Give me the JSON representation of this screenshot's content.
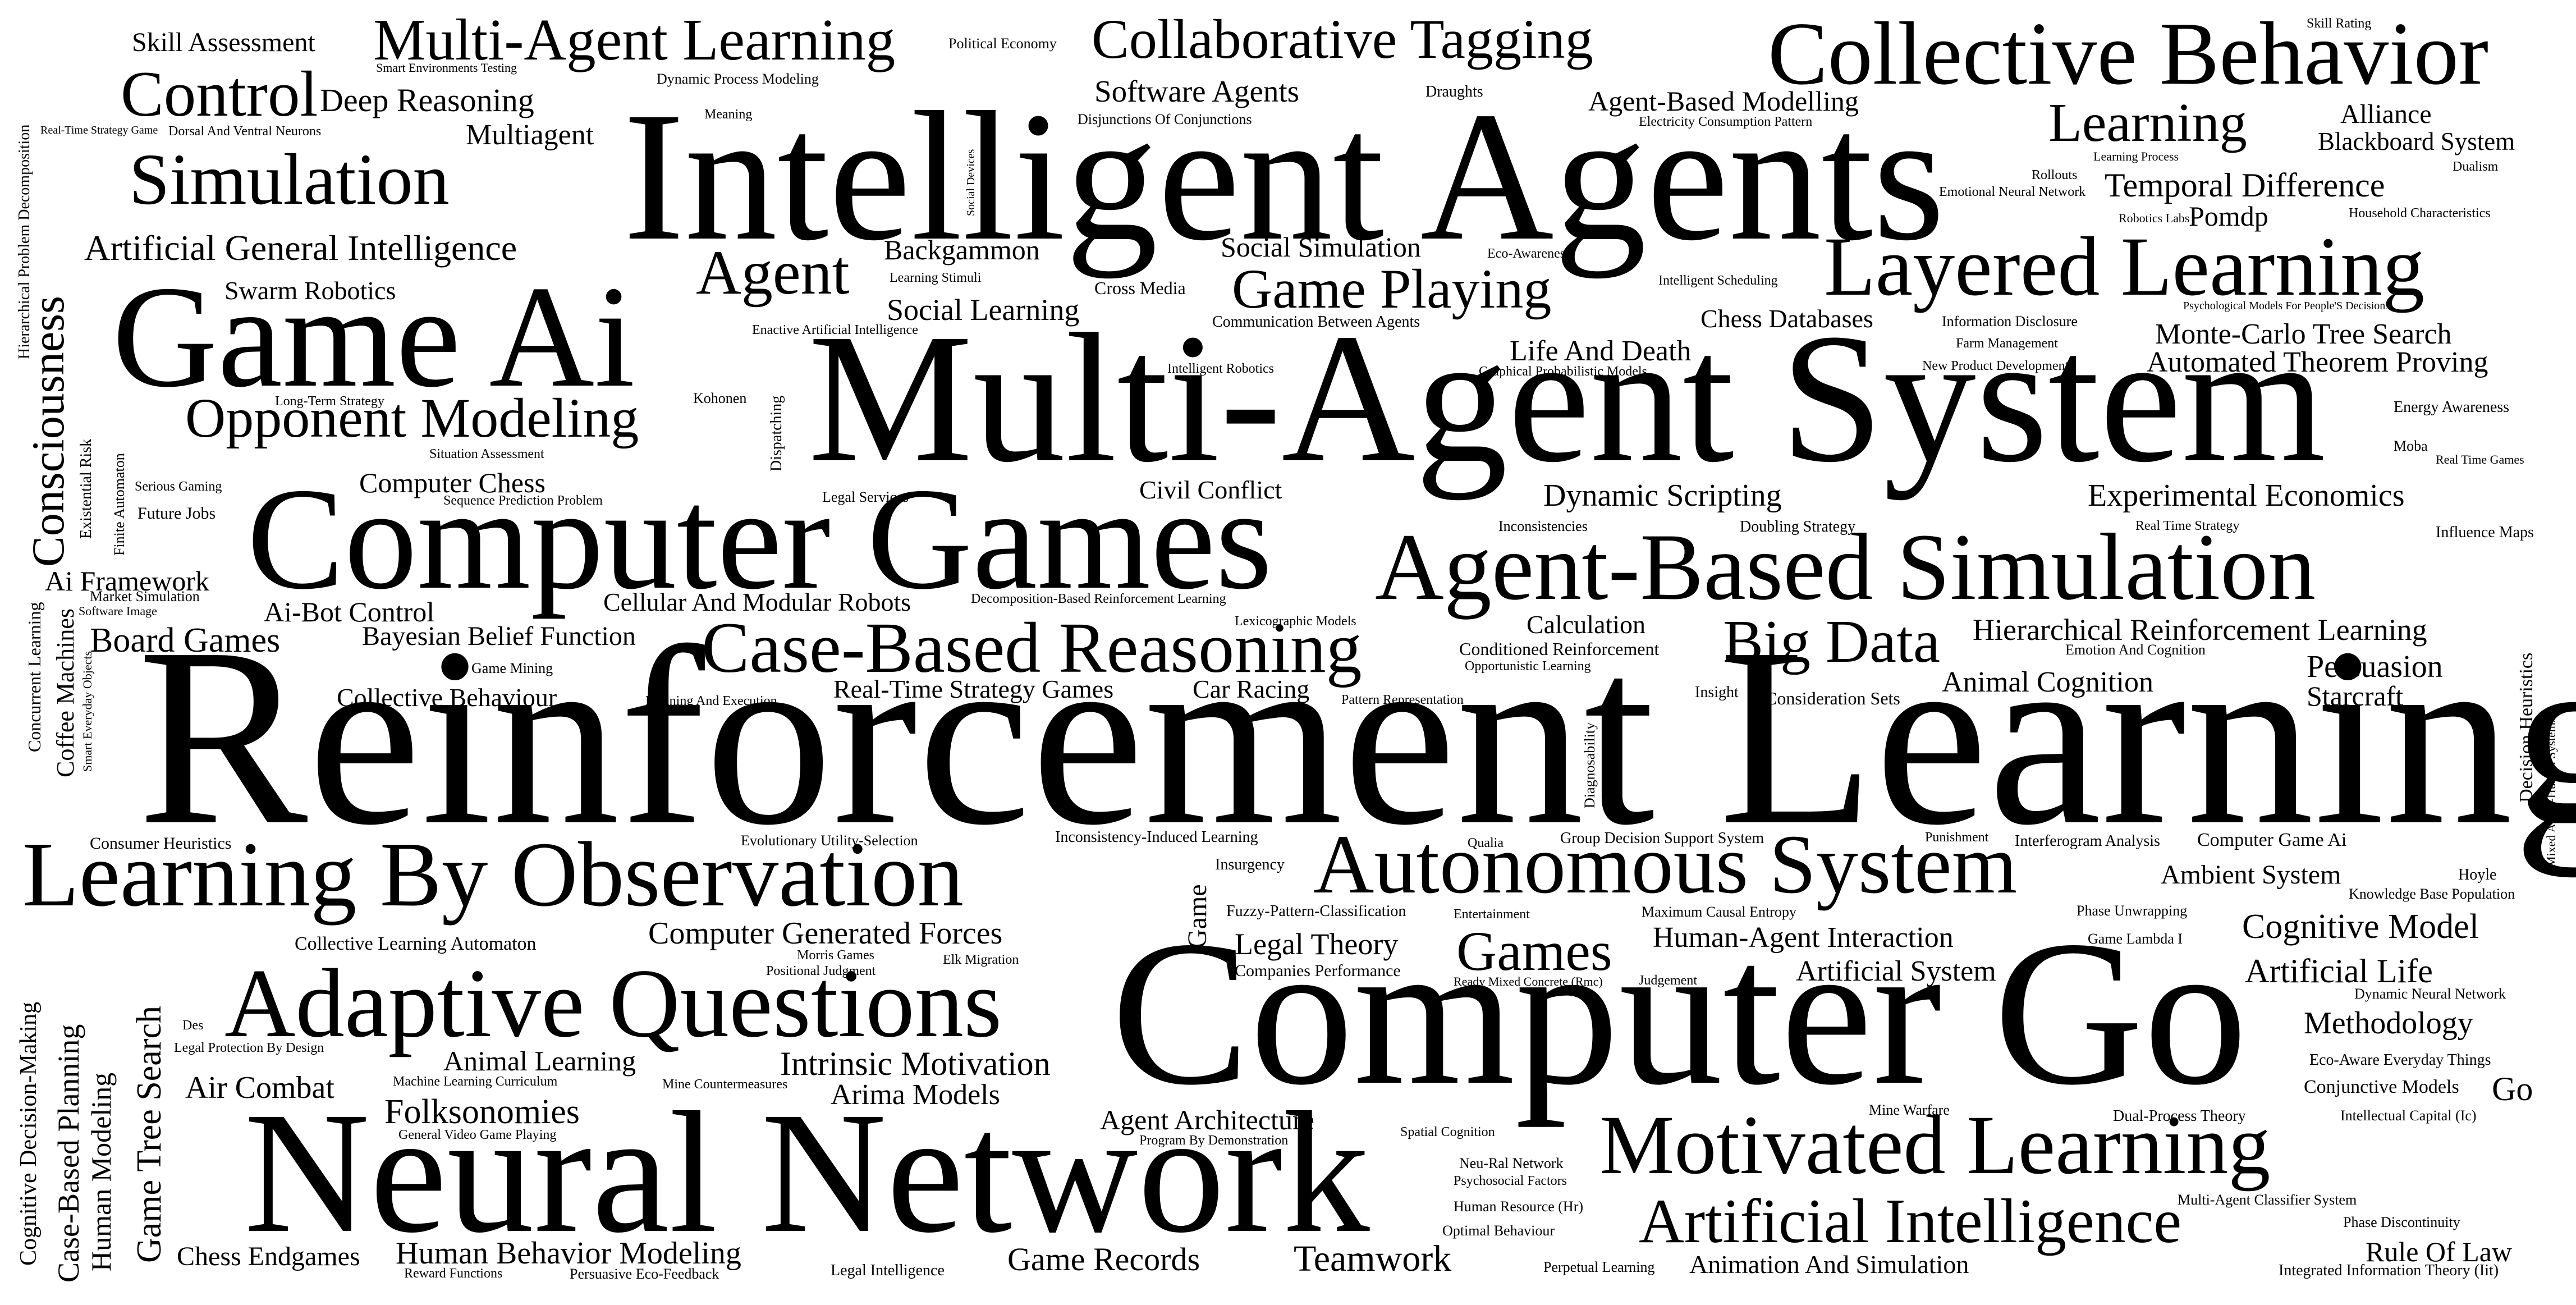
{
  "words": {
    "skill_assessment": "Skill Assessment",
    "multi_agent_learning": "Multi-Agent Learning",
    "political_economy": "Political Economy",
    "collaborative_tagging": "Collaborative Tagging",
    "collective_behavior": "Collective Behavior",
    "skill_rating": "Skill Rating",
    "smart_environments_testing": "Smart Environments Testing",
    "dynamic_process_modeling": "Dynamic Process Modeling",
    "control": "Control",
    "deep_reasoning": "Deep Reasoning",
    "software_agents": "Software Agents",
    "draughts": "Draughts",
    "agent_based_modelling": "Agent-Based Modelling",
    "meaning": "Meaning",
    "disjunctions_of_conjunctions": "Disjunctions Of Conjunctions",
    "electricity_consumption_pattern": "Electricity Consumption Pattern",
    "alliance": "Alliance",
    "learning": "Learning",
    "blackboard_system": "Blackboard System",
    "multiagent": "Multiagent",
    "real_time_strategy_game": "Real-Time Strategy Game",
    "dorsal_ventral_neurons": "Dorsal And Ventral Neurons",
    "intelligent_agents": "Intelligent Agents",
    "learning_process": "Learning Process",
    "dualism": "Dualism",
    "simulation": "Simulation",
    "rollouts": "Rollouts",
    "temporal_difference": "Temporal Difference",
    "social_devices": "Social Devices",
    "emotional_neural_network": "Emotional Neural Network",
    "robotics_labs": "Robotics Labs",
    "household_characteristics": "Household Characteristics",
    "pomdp": "Pomdp",
    "artificial_general_intelligence": "Artificial General Intelligence",
    "backgammon": "Backgammon",
    "social_simulation": "Social Simulation",
    "eco_awareness": "Eco-Awareness",
    "agent": "Agent",
    "layered_learning": "Layered Learning",
    "learning_stimuli": "Learning Stimuli",
    "intelligent_scheduling": "Intelligent Scheduling",
    "cross_media": "Cross Media",
    "game_playing": "Game Playing",
    "swarm_robotics": "Swarm Robotics",
    "psychological_models": "Psychological Models For People'S Decisions",
    "social_learning": "Social Learning",
    "chess_databases": "Chess Databases",
    "information_disclosure": "Information Disclosure",
    "communication_between_agents": "Communication Between Agents",
    "enactive_ai": "Enactive Artificial Intelligence",
    "monte_carlo_tree_search": "Monte-Carlo Tree Search",
    "game_ai": "Game Ai",
    "farm_management": "Farm Management",
    "life_and_death": "Life And Death",
    "automated_theorem_proving": "Automated Theorem Proving",
    "new_product_development": "New Product Development",
    "intelligent_robotics": "Intelligent Robotics",
    "graphical_probabilistic_models": "Graphical Probabilistic Models",
    "long_term_strategy": "Long-Term Strategy",
    "kohonen": "Kohonen",
    "multi_agent_system": "Multi-Agent System",
    "energy_awareness": "Energy Awareness",
    "opponent_modeling": "Opponent Modeling",
    "moba": "Moba",
    "real_time_games": "Real Time Games",
    "situation_assessment": "Situation Assessment",
    "serious_gaming": "Serious Gaming",
    "computer_chess": "Computer Chess",
    "civil_conflict": "Civil Conflict",
    "dynamic_scripting": "Dynamic Scripting",
    "experimental_economics": "Experimental Economics",
    "sequence_prediction": "Sequence Prediction Problem",
    "legal_services": "Legal Services",
    "future_jobs": "Future Jobs",
    "computer_games": "Computer Games",
    "inconsistencies": "Inconsistencies",
    "doubling_strategy": "Doubling Strategy",
    "real_time_strategy": "Real Time Strategy",
    "influence_maps": "Influence Maps",
    "agent_based_simulation": "Agent-Based Simulation",
    "ai_framework": "Ai Framework",
    "market_simulation": "Market Simulation",
    "software_image": "Software Image",
    "cellular_modular_robots": "Cellular And Modular Robots",
    "decomposition_based_rl": "Decomposition-Based Reinforcement Learning",
    "ai_bot_control": "Ai-Bot Control",
    "lexicographic_models": "Lexicographic Models",
    "calculation": "Calculation",
    "big_data": "Big Data",
    "hierarchical_rl": "Hierarchical Reinforcement Learning",
    "board_games": "Board Games",
    "bayesian_belief_function": "Bayesian Belief Function",
    "case_based_reasoning": "Case-Based Reasoning",
    "conditioned_reinforcement": "Conditioned Reinforcement",
    "emotion_and_cognition": "Emotion And Cognition",
    "game_mining": "Game Mining",
    "opportunistic_learning": "Opportunistic Learning",
    "persuasion": "Persuasion",
    "animal_cognition": "Animal Cognition",
    "collective_behaviour": "Collective Behaviour",
    "planning_and_execution": "Planning And Execution",
    "real_time_strategy_games": "Real-Time Strategy Games",
    "car_racing": "Car Racing",
    "pattern_representation": "Pattern Representation",
    "insight": "Insight",
    "consideration_sets": "Consideration Sets",
    "starcraft": "Starcraft",
    "reinforcement_learning": "Reinforcement Learning",
    "consumer_heuristics": "Consumer Heuristics",
    "evolutionary_utility_selection": "Evolutionary Utility-Selection",
    "inconsistency_induced_learning": "Inconsistency-Induced Learning",
    "qualia": "Qualia",
    "group_decision_support": "Group Decision Support System",
    "punishment": "Punishment",
    "interferogram_analysis": "Interferogram Analysis",
    "computer_game_ai": "Computer Game Ai",
    "hoyle": "Hoyle",
    "learning_by_observation": "Learning By Observation",
    "insurgency": "Insurgency",
    "autonomous_system": "Autonomous System",
    "ambient_system": "Ambient System",
    "knowledge_base_population": "Knowledge Base Population",
    "fuzzy_pattern_classification": "Fuzzy-Pattern-Classification",
    "entertainment": "Entertainment",
    "maximum_causal_entropy": "Maximum Causal Entropy",
    "phase_unwrapping": "Phase Unwrapping",
    "collective_learning_automaton": "Collective Learning Automaton",
    "computer_generated_forces": "Computer Generated Forces",
    "legal_theory": "Legal Theory",
    "human_agent_interaction": "Human-Agent Interaction",
    "game_lambda_i": "Game Lambda I",
    "cognitive_model": "Cognitive Model",
    "morris_games": "Morris Games",
    "elk_migration": "Elk Migration",
    "games": "Games",
    "companies_performance": "Companies Performance",
    "artificial_system": "Artificial System",
    "positional_judgment": "Positional Judgment",
    "ready_mixed_concrete": "Ready Mixed Concrete (Rmc)",
    "judgement": "Judgement",
    "artificial_life": "Artificial Life",
    "adaptive_questions": "Adaptive Questions",
    "computer_go": "Computer Go",
    "dynamic_neural_network": "Dynamic Neural Network",
    "legal_protection_by_design": "Legal Protection By Design",
    "des": "Des",
    "methodology": "Methodology",
    "animal_learning": "Animal Learning",
    "intrinsic_motivation": "Intrinsic Motivation",
    "eco_aware_everyday_things": "Eco-Aware Everyday Things",
    "air_combat": "Air Combat",
    "ml_curriculum": "Machine Learning Curriculum",
    "mine_countermeasures": "Mine Countermeasures",
    "arima_models": "Arima Models",
    "conjunctive_models": "Conjunctive Models",
    "go": "Go",
    "folksonomies": "Folksonomies",
    "mine_warfare": "Mine Warfare",
    "dual_process_theory": "Dual-Process Theory",
    "intellectual_capital": "Intellectual Capital (Ic)",
    "agent_architecture": "Agent Architecture",
    "general_video_game_playing": "General Video Game Playing",
    "program_by_demonstration": "Program By Demonstration",
    "spatial_cognition": "Spatial Cognition",
    "motivated_learning": "Motivated Learning",
    "neural_network": "Neural Network",
    "neu_ral_network": "Neu-Ral Network",
    "psychosocial_factors": "Psychosocial Factors",
    "multi_agent_classifier_system": "Multi-Agent Classifier System",
    "human_resource": "Human Resource (Hr)",
    "artificial_intelligence": "Artificial Intelligence",
    "phase_discontinuity": "Phase Discontinuity",
    "optimal_behaviour": "Optimal Behaviour",
    "chess_endgames": "Chess Endgames",
    "human_behavior_modeling": "Human Behavior Modeling",
    "game_records": "Game Records",
    "teamwork": "Teamwork",
    "rule_of_law": "Rule Of Law",
    "reward_functions": "Reward Functions",
    "persuasive_eco_feedback": "Persuasive Eco-Feedback",
    "legal_intelligence": "Legal Intelligence",
    "perpetual_learning": "Perpetual Learning",
    "animation_and_simulation": "Animation And Simulation",
    "integrated_information_theory": "Integrated Information Theory (Iit)",
    "hierarchical_problem_decomposition": "Hierarchical Problem Decomposition",
    "consciousness": "Consciousness",
    "existential_risk": "Existential Risk",
    "finite_automaton": "Finite Automaton",
    "concurrent_learning": "Concurrent Learning",
    "coffee_machines": "Coffee Machines",
    "smart_everyday_objects": "Smart Everyday Objects",
    "cognitive_decision_making": "Cognitive Decision-Making",
    "case_based_planning": "Case-Based Planning",
    "human_modeling": "Human Modeling",
    "game_tree_search": "Game Tree Search",
    "dispatching": "Dispatching",
    "game": "Game",
    "diagnosability": "Diagnosability",
    "decision_heuristics": "Decision Heuristics",
    "mixed_agent_human_systems": "Mixed Agent-Human Systems"
  }
}
